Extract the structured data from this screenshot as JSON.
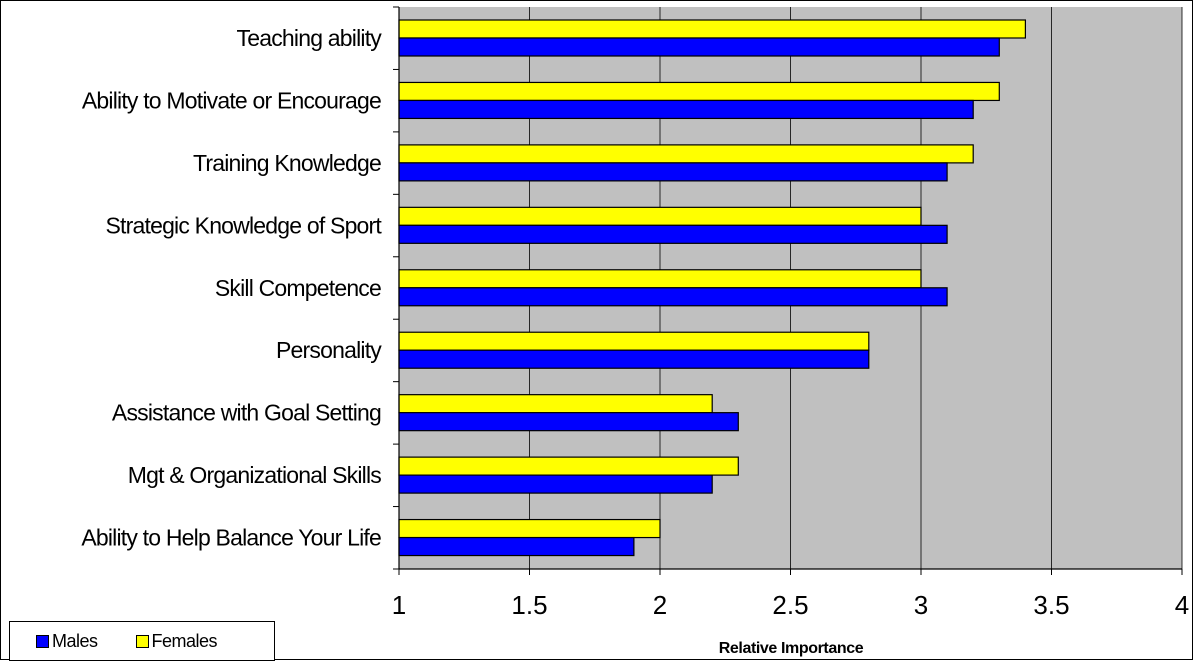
{
  "colors": {
    "males": "#0000FF",
    "females": "#FFFF00",
    "plot_background": "#C0C0C0",
    "gridline": "#000000"
  },
  "legend": {
    "males": "Males",
    "females": "Females"
  },
  "chart_data": {
    "type": "bar",
    "orientation": "horizontal",
    "title": "",
    "xlabel": "Relative Importance",
    "ylabel": "",
    "xlim": [
      1,
      4
    ],
    "xticks": [
      "1",
      "1.5",
      "2",
      "2.5",
      "3",
      "3.5",
      "4"
    ],
    "grid": "vertical major gridlines",
    "legend_position": "bottom-left",
    "categories": [
      "Teaching ability",
      "Ability to Motivate or Encourage",
      "Training Knowledge",
      "Strategic Knowledge of Sport",
      "Skill Competence",
      "Personality",
      "Assistance with Goal Setting",
      "Mgt & Organizational Skills",
      "Ability to Help Balance Your Life"
    ],
    "series": [
      {
        "name": "Females",
        "values": [
          3.4,
          3.3,
          3.2,
          3.0,
          3.0,
          2.8,
          2.2,
          2.3,
          2.0
        ]
      },
      {
        "name": "Males",
        "values": [
          3.3,
          3.2,
          3.1,
          3.1,
          3.1,
          2.8,
          2.3,
          2.2,
          1.9
        ]
      }
    ]
  }
}
